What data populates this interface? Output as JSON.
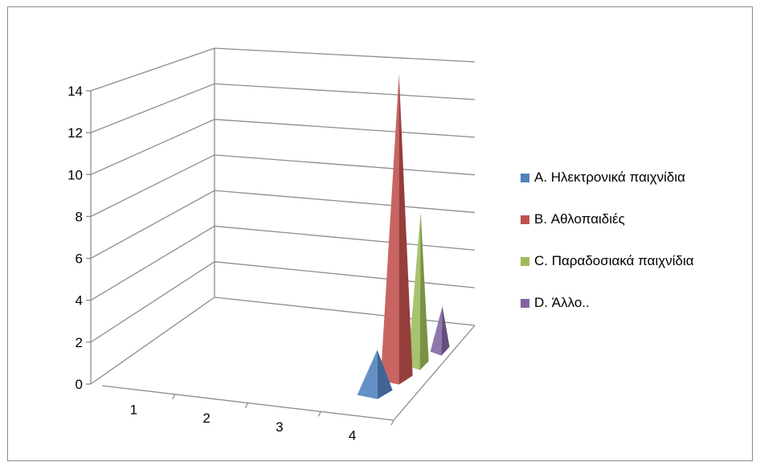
{
  "chart_data": {
    "type": "bar",
    "subtype": "3d-pyramid",
    "title": "",
    "xlabel": "",
    "ylabel": "",
    "categories": [
      "1",
      "2",
      "3",
      "4"
    ],
    "ylim": [
      0,
      14
    ],
    "yticks": [
      "0",
      "2",
      "4",
      "6",
      "8",
      "10",
      "12",
      "14"
    ],
    "grid": true,
    "legend_position": "right",
    "series": [
      {
        "name": "A. Ηλεκτρονικά παιχνίδια",
        "color": "#4f81bd",
        "values": [
          0,
          0,
          0,
          2
        ]
      },
      {
        "name": "B. Αθλοπαιδιές",
        "color": "#c0504d",
        "values": [
          0,
          0,
          0,
          14
        ]
      },
      {
        "name": "C. Παραδοσιακά παιχνίδια",
        "color": "#9bbb59",
        "values": [
          0,
          0,
          0,
          7
        ]
      },
      {
        "name": "D. Άλλο..",
        "color": "#8064a2",
        "values": [
          0,
          0,
          0,
          2
        ]
      }
    ]
  }
}
